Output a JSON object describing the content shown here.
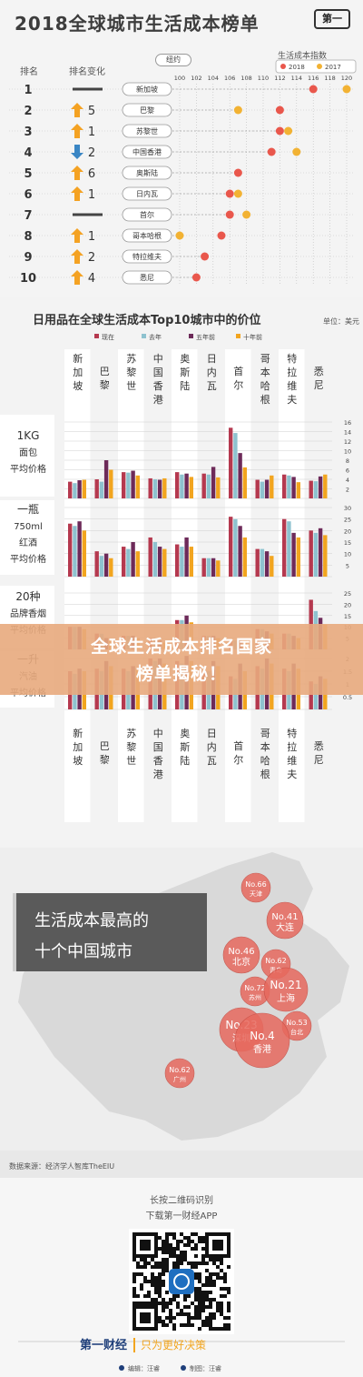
{
  "chart_data": [
    {
      "type": "scatter",
      "title": "2018全球城市生活成本榜单",
      "legend_title": "生活成本指数",
      "reference_label": "纽约",
      "col_headers": [
        "排名",
        "排名变化"
      ],
      "x_ticks": [
        100,
        102,
        104,
        106,
        108,
        110,
        112,
        114,
        116,
        118,
        120
      ],
      "xlim": [
        100,
        120
      ],
      "series": [
        {
          "name": "2018",
          "color": "#e9574c"
        },
        {
          "name": "2017",
          "color": "#f2b233"
        }
      ],
      "rows": [
        {
          "rank": "1",
          "dir": "none",
          "change": "",
          "city": "新加坡",
          "v2018": 116,
          "v2017": 120
        },
        {
          "rank": "2",
          "dir": "up",
          "change": "5",
          "city": "巴黎",
          "v2018": 112,
          "v2017": 107
        },
        {
          "rank": "3",
          "dir": "up",
          "change": "1",
          "city": "苏黎世",
          "v2018": 112,
          "v2017": 113
        },
        {
          "rank": "4",
          "dir": "down",
          "change": "2",
          "city": "中国香港",
          "v2018": 111,
          "v2017": 114
        },
        {
          "rank": "5",
          "dir": "up",
          "change": "6",
          "city": "奥斯陆",
          "v2018": 107,
          "v2017": null
        },
        {
          "rank": "6",
          "dir": "up",
          "change": "1",
          "city": "日内瓦",
          "v2018": 106,
          "v2017": 107
        },
        {
          "rank": "7",
          "dir": "none",
          "change": "",
          "city": "首尔",
          "v2018": 106,
          "v2017": 108
        },
        {
          "rank": "8",
          "dir": "up",
          "change": "1",
          "city": "哥本哈根",
          "v2018": 105,
          "v2017": 100
        },
        {
          "rank": "9",
          "dir": "up",
          "change": "2",
          "city": "特拉维夫",
          "v2018": 103,
          "v2017": null
        },
        {
          "rank": "10",
          "dir": "up",
          "change": "4",
          "city": "悉尼",
          "v2018": 102,
          "v2017": null
        }
      ]
    },
    {
      "type": "bar",
      "title": "日用品在全球生活成本Top10城市中的价位",
      "unit": "单位：美元",
      "cities": [
        "新加坡",
        "巴黎",
        "苏黎世",
        "中国香港",
        "奥斯陆",
        "日内瓦",
        "首尔",
        "哥本哈根",
        "特拉维夫",
        "悉尼"
      ],
      "series": [
        {
          "name": "现在",
          "color": "#b5394f"
        },
        {
          "name": "去年",
          "color": "#8ec2cf"
        },
        {
          "name": "五年前",
          "color": "#6d2a59"
        },
        {
          "name": "十年前",
          "color": "#f2a51f"
        }
      ],
      "panels": [
        {
          "label": [
            "1KG",
            "面包",
            "平均价格"
          ],
          "ylim": [
            0,
            16
          ],
          "ticks": [
            0,
            2,
            4,
            6,
            8,
            10,
            12,
            14,
            16
          ],
          "values": [
            [
              3.5,
              3.2,
              3.8,
              3.9
            ],
            [
              4.0,
              3.5,
              8.0,
              6.0
            ],
            [
              5.5,
              5.4,
              5.8,
              4.8
            ],
            [
              4.2,
              4.0,
              3.9,
              4.2
            ],
            [
              5.5,
              5.0,
              5.2,
              4.5
            ],
            [
              5.2,
              5.0,
              6.6,
              4.4
            ],
            [
              14.8,
              13.7,
              9.5,
              6.5
            ],
            [
              3.9,
              3.5,
              3.9,
              4.8
            ],
            [
              5.0,
              4.8,
              4.5,
              3.4
            ],
            [
              3.7,
              3.6,
              4.6,
              5.0
            ]
          ]
        },
        {
          "label": [
            "一瓶",
            "750ml",
            "红酒",
            "平均价格"
          ],
          "ylim": [
            0,
            30
          ],
          "ticks": [
            0,
            5,
            10,
            15,
            20,
            25,
            30
          ],
          "values": [
            [
              23,
              22,
              24,
              20
            ],
            [
              11,
              9,
              10,
              8
            ],
            [
              13,
              12,
              15,
              11
            ],
            [
              17,
              15,
              13,
              12
            ],
            [
              14,
              13,
              17,
              13
            ],
            [
              8,
              8,
              8,
              7
            ],
            [
              26,
              25,
              22,
              17
            ],
            [
              12,
              12,
              11,
              9
            ],
            [
              25,
              24,
              19,
              17
            ],
            [
              20,
              19,
              21,
              18
            ]
          ]
        },
        {
          "label": [
            "20种",
            "品牌香烟",
            "平均价格"
          ],
          "ylim": [
            0,
            25
          ],
          "ticks": [
            0,
            5,
            10,
            15,
            20,
            25
          ],
          "values": [
            [
              10,
              10,
              10,
              9
            ],
            [
              7,
              7,
              5,
              4
            ],
            [
              6,
              6,
              6,
              5
            ],
            [
              5,
              5,
              4,
              3
            ],
            [
              13,
              13,
              15,
              12
            ],
            [
              6,
              6,
              6,
              5
            ],
            [
              4,
              4,
              4,
              4
            ],
            [
              9,
              9,
              8,
              7
            ],
            [
              7,
              7,
              6,
              5
            ],
            [
              22,
              17,
              14,
              11
            ]
          ]
        },
        {
          "label": [
            "一升",
            "汽油",
            "平均价格"
          ],
          "ylim": [
            0,
            2
          ],
          "ticks": [
            0,
            0.5,
            1,
            1.5,
            2
          ],
          "values": [
            [
              1.5,
              1.4,
              1.6,
              1.5
            ],
            [
              1.6,
              1.5,
              1.9,
              1.7
            ],
            [
              1.6,
              1.5,
              1.7,
              1.6
            ],
            [
              2.0,
              1.9,
              2.0,
              1.8
            ],
            [
              1.9,
              1.8,
              2.1,
              1.9
            ],
            [
              1.5,
              1.5,
              1.9,
              1.7
            ],
            [
              1.3,
              1.2,
              1.8,
              1.5
            ],
            [
              1.7,
              1.6,
              2.0,
              1.8
            ],
            [
              1.6,
              1.5,
              1.8,
              1.6
            ],
            [
              1.1,
              1.0,
              1.3,
              1.2
            ]
          ]
        }
      ]
    }
  ],
  "map_section": {
    "title_line1": "生活成本最高的",
    "title_line2": "十个中国城市",
    "cities": [
      {
        "rank": "No.66",
        "name": "天津",
        "size": "s"
      },
      {
        "rank": "No.41",
        "name": "大连",
        "size": "m"
      },
      {
        "rank": "No.46",
        "name": "北京",
        "size": "m"
      },
      {
        "rank": "No.62",
        "name": "青岛",
        "size": "s"
      },
      {
        "rank": "No.72",
        "name": "苏州",
        "size": "s"
      },
      {
        "rank": "No.21",
        "name": "上海",
        "size": "l"
      },
      {
        "rank": "No.53",
        "name": "台北",
        "size": "s"
      },
      {
        "rank": "No.23",
        "name": "深圳",
        "size": "l"
      },
      {
        "rank": "No.4",
        "name": "香港",
        "size": "xl"
      },
      {
        "rank": "No.62",
        "name": "广州",
        "size": "s"
      }
    ]
  },
  "banner": {
    "line1": "全球生活成本排名国家",
    "line2": "榜单揭秘！"
  },
  "footer": {
    "source": "数据来源：经济学人智库TheEIU",
    "qr_line1": "长按二维码识别",
    "qr_line2": "下载第一财经APP",
    "brand": "第一财经",
    "slogan": "只为更好决策",
    "editor": "编辑：汪睿",
    "designer": "制图：汪睿"
  },
  "colors": {
    "red": "#e9574c",
    "orange": "#f2b233",
    "arrow_up": "#f4a223",
    "arrow_down": "#3a86c4",
    "bubble": "#e7695e"
  }
}
